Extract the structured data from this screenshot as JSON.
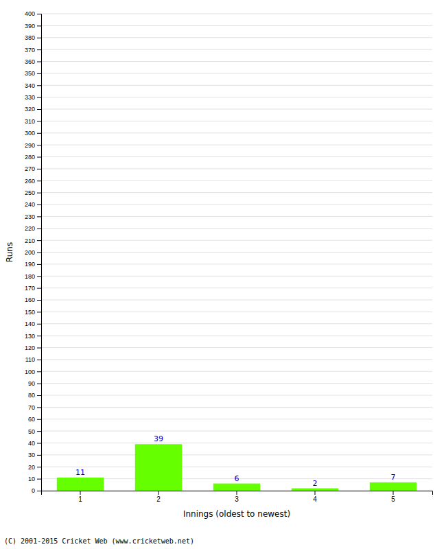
{
  "chart_data": {
    "type": "bar",
    "categories": [
      1,
      2,
      3,
      4,
      5
    ],
    "values": [
      11,
      39,
      6,
      2,
      7
    ],
    "color": "#66ff00",
    "xlabel": "Innings (oldest to newest)",
    "ylabel": "Runs",
    "ylim": [
      0,
      400
    ],
    "yticks": [
      0,
      10,
      20,
      30,
      40,
      50,
      60,
      70,
      80,
      90,
      100,
      110,
      120,
      130,
      140,
      150,
      160,
      170,
      180,
      190,
      200,
      210,
      220,
      230,
      240,
      250,
      260,
      270,
      280,
      290,
      300,
      310,
      320,
      330,
      340,
      350,
      360,
      370,
      380,
      390,
      400
    ],
    "grid": true,
    "data_labels": true,
    "annotations": [
      "(C) 2001-2015 Cricket Web (www.cricketweb.net)"
    ]
  }
}
